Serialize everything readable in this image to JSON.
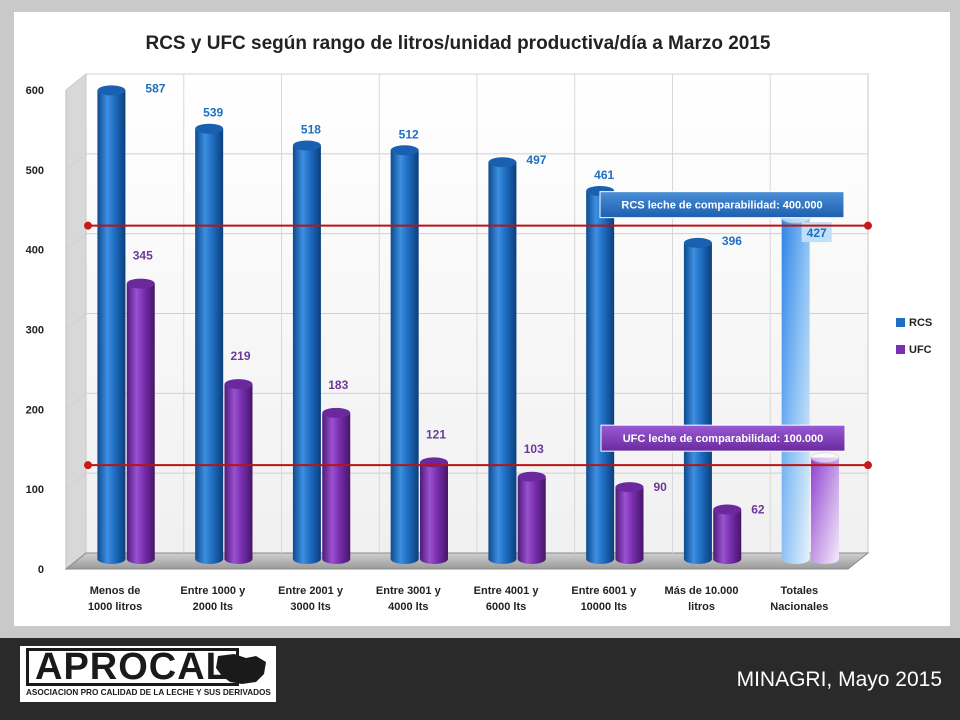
{
  "chart_data": {
    "type": "bar",
    "title": "RCS y UFC según rango de litros/unidad productiva/día a Marzo 2015",
    "categories": [
      [
        "Menos de",
        "1000 litros"
      ],
      [
        "Entre 1000 y",
        "2000 lts"
      ],
      [
        "Entre 2001 y",
        "3000 lts"
      ],
      [
        "Entre 3001 y",
        "4000 lts"
      ],
      [
        "Entre 4001 y",
        "6000 lts"
      ],
      [
        "Entre 6001 y",
        "10000 lts"
      ],
      [
        "Más de 10.000",
        "litros"
      ],
      [
        "Totales",
        "Nacionales"
      ]
    ],
    "series": [
      {
        "name": "RCS",
        "values": [
          587,
          539,
          518,
          512,
          497,
          461,
          396,
          427
        ],
        "color": "#1f6fc4"
      },
      {
        "name": "UFC",
        "values": [
          345,
          219,
          183,
          121,
          103,
          90,
          62,
          127
        ],
        "color": "#7a2fb0"
      }
    ],
    "ylim": [
      0,
      600
    ],
    "yticks": [
      "0",
      "100",
      "200",
      "300",
      "400",
      "500",
      "600"
    ],
    "grid": true,
    "legend": "right",
    "reference_lines": [
      {
        "label": "RCS leche de comparabilidad: 400.000",
        "value": 400
      },
      {
        "label": "UFC leche de comparabilidad: 100.000",
        "value": 100
      }
    ]
  },
  "footer": {
    "logo_text": "APROCAL",
    "logo_subtitle": "ASOCIACION PRO CALIDAD DE LA LECHE Y SUS DERIVADOS",
    "source": "MINAGRI, Mayo 2015"
  }
}
